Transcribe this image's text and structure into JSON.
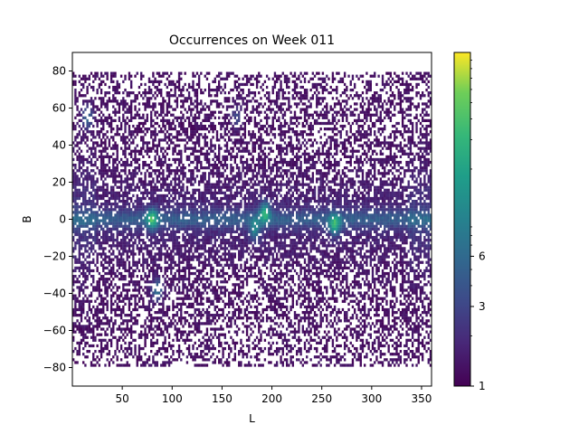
{
  "chart_data": {
    "type": "heatmap",
    "title": "Occurrences on Week 011",
    "xlabel": "L",
    "ylabel": "B",
    "xlim": [
      0,
      360
    ],
    "ylim": [
      -90,
      90
    ],
    "x_ticks": [
      50,
      100,
      150,
      200,
      250,
      300,
      350
    ],
    "y_ticks": [
      -80,
      -60,
      -40,
      -20,
      0,
      20,
      40,
      60,
      80
    ],
    "colorbar": {
      "scale": "log",
      "range": [
        1,
        100
      ],
      "colormap": "viridis",
      "tick_values": [
        1,
        3,
        6
      ],
      "tick_labels": [
        "1",
        "3",
        "6"
      ]
    },
    "features": [
      {
        "description": "Dense band along B = 0 across the full L range"
      },
      {
        "l": 80,
        "b": 0,
        "level": "peak"
      },
      {
        "l": 193,
        "b": 4,
        "level": "peak"
      },
      {
        "l": 183,
        "b": -6,
        "level": "high"
      },
      {
        "l": 263,
        "b": -3,
        "level": "peak"
      },
      {
        "l": 85,
        "b": -38,
        "level": "high"
      },
      {
        "l": 15,
        "b": 55,
        "level": "high"
      },
      {
        "l": 165,
        "b": 55,
        "level": "moderate"
      }
    ],
    "colors": {
      "empty": "#ffffff",
      "low": "#440154",
      "mid": "#21918c",
      "high": "#fde725"
    }
  }
}
